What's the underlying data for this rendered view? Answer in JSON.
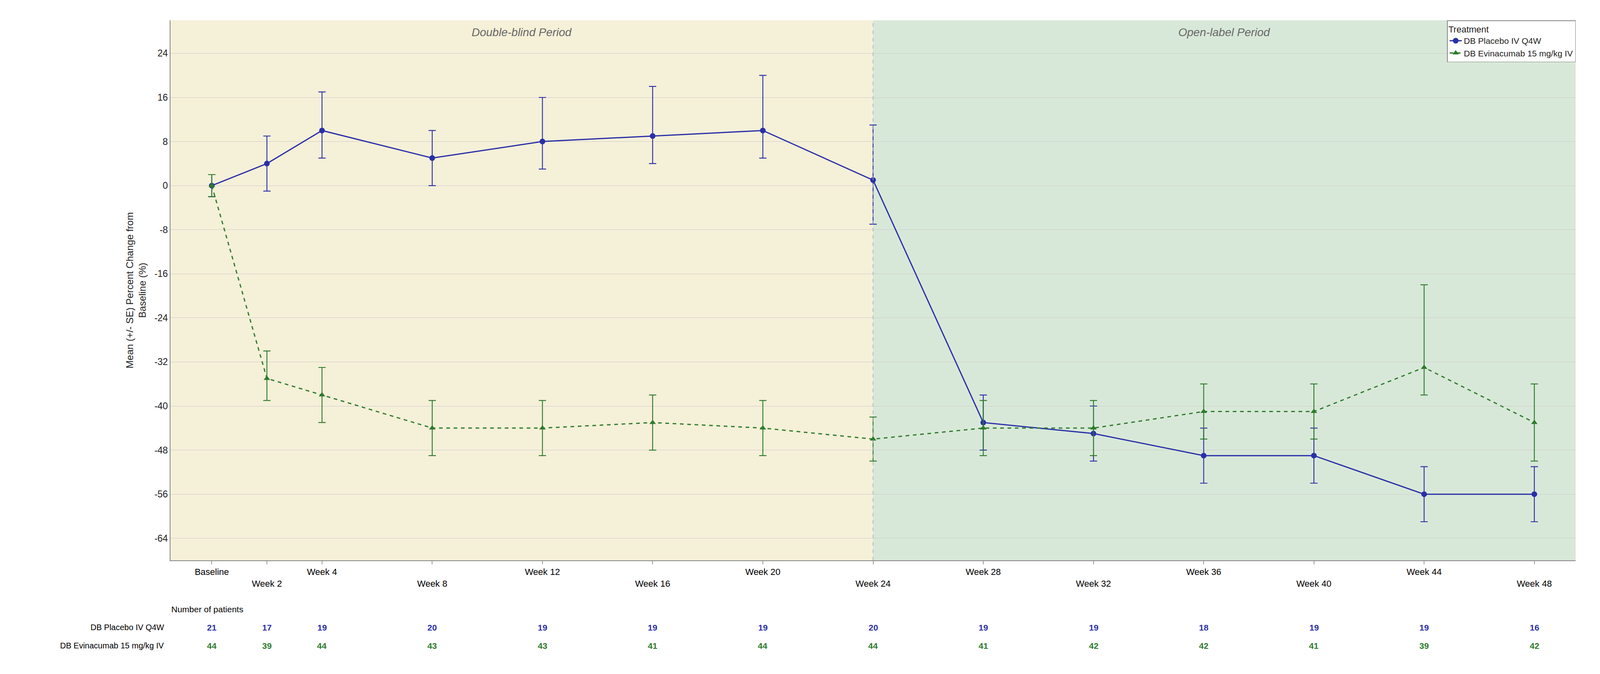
{
  "chart_data": {
    "type": "line",
    "ylabel": "Mean (+/- SE) Percent Change from\nBaseline (%)",
    "x": [
      0,
      2,
      4,
      8,
      12,
      16,
      20,
      24,
      28,
      32,
      36,
      40,
      44,
      48
    ],
    "xlim": [
      -1.5,
      49.5
    ],
    "xticks": [
      {
        "value": 0,
        "label": "Baseline"
      },
      {
        "value": 2,
        "label": "Week 2"
      },
      {
        "value": 4,
        "label": "Week 4"
      },
      {
        "value": 8,
        "label": "Week 8"
      },
      {
        "value": 12,
        "label": "Week 12"
      },
      {
        "value": 16,
        "label": "Week 16"
      },
      {
        "value": 20,
        "label": "Week 20"
      },
      {
        "value": 24,
        "label": "Week 24"
      },
      {
        "value": 28,
        "label": "Week 28"
      },
      {
        "value": 32,
        "label": "Week 32"
      },
      {
        "value": 36,
        "label": "Week 36"
      },
      {
        "value": 40,
        "label": "Week 40"
      },
      {
        "value": 44,
        "label": "Week 44"
      },
      {
        "value": 48,
        "label": "Week 48"
      }
    ],
    "ylim": [
      -68,
      30
    ],
    "yticks": [
      24,
      16,
      8,
      0,
      -8,
      -16,
      -24,
      -32,
      -40,
      -48,
      -56,
      -64
    ],
    "grid": true,
    "legend": "upper right",
    "legend_title": "Treatment",
    "periods": [
      {
        "label": "Double-blind Period",
        "start": -1.5,
        "end": 24,
        "color": "#f5f0d8"
      },
      {
        "label": "Open-label Period",
        "start": 24,
        "end": 49.5,
        "color": "#d8e8d8"
      }
    ],
    "patients_label": "Number of patients",
    "series": [
      {
        "name": "DB Placebo IV Q4W",
        "color": "#2a2fa8",
        "marker": "circle",
        "line_style": "solid",
        "values": [
          0,
          4,
          10,
          5,
          8,
          9,
          10,
          1,
          -43,
          -45,
          -49,
          -49,
          -56,
          -56
        ],
        "error_upper": [
          2,
          5,
          7,
          5,
          8,
          9,
          10,
          10,
          5,
          5,
          5,
          5,
          5,
          5
        ],
        "error_lower": [
          2,
          5,
          5,
          5,
          5,
          5,
          5,
          8,
          5,
          5,
          5,
          5,
          5,
          5
        ],
        "patients": [
          21,
          17,
          19,
          20,
          19,
          19,
          19,
          20,
          19,
          19,
          18,
          19,
          19,
          16
        ]
      },
      {
        "name": "DB Evinacumab 15 mg/kg IV",
        "color": "#2d7a2d",
        "marker": "triangle",
        "line_style": "dashed",
        "values": [
          0,
          -35,
          -38,
          -44,
          -44,
          -43,
          -44,
          -46,
          -44,
          -44,
          -41,
          -41,
          -33,
          -43
        ],
        "error_upper": [
          2,
          5,
          5,
          5,
          5,
          5,
          5,
          4,
          5,
          5,
          5,
          5,
          15,
          7
        ],
        "error_lower": [
          2,
          4,
          5,
          5,
          5,
          5,
          5,
          4,
          5,
          5,
          5,
          5,
          5,
          7
        ],
        "patients": [
          44,
          39,
          44,
          43,
          43,
          41,
          44,
          44,
          41,
          42,
          42,
          41,
          39,
          42
        ]
      }
    ]
  }
}
